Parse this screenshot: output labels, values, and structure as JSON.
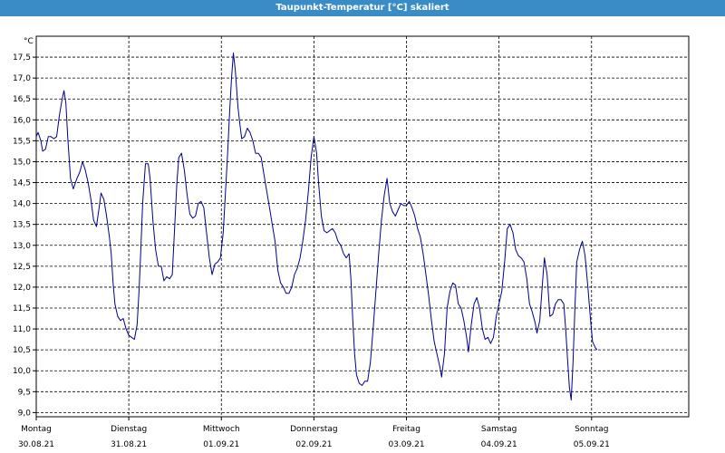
{
  "window": {
    "title": "Taupunkt-Temperatur [°C] skaliert"
  },
  "chart_data": {
    "type": "line",
    "title": "Taupunkt-Temperatur [°C] skaliert",
    "unit_label": "°C",
    "ylim": [
      9.0,
      17.5
    ],
    "ylim_display": [
      8.9,
      18.0
    ],
    "yticks": [
      "9,0",
      "9,5",
      "10,0",
      "10,5",
      "11,0",
      "11,5",
      "12,0",
      "12,5",
      "13,0",
      "13,5",
      "14,0",
      "14,5",
      "15,0",
      "15,5",
      "16,0",
      "16,5",
      "17,0",
      "17,5"
    ],
    "xlim_days": [
      0,
      7.05
    ],
    "xticks": [
      {
        "day": "Montag",
        "date": "30.08.21"
      },
      {
        "day": "Dienstag",
        "date": "31.08.21"
      },
      {
        "day": "Mittwoch",
        "date": "01.09.21"
      },
      {
        "day": "Donnerstag",
        "date": "02.09.21"
      },
      {
        "day": "Freitag",
        "date": "03.09.21"
      },
      {
        "day": "Samstag",
        "date": "04.09.21"
      },
      {
        "day": "Sonntag",
        "date": "05.09.21"
      }
    ],
    "grid": true,
    "line_color": "#00008b",
    "series": [
      {
        "values": [
          [
            0.0,
            15.6
          ],
          [
            0.02,
            15.7
          ],
          [
            0.05,
            15.5
          ],
          [
            0.07,
            15.25
          ],
          [
            0.1,
            15.3
          ],
          [
            0.13,
            15.6
          ],
          [
            0.16,
            15.6
          ],
          [
            0.19,
            15.55
          ],
          [
            0.22,
            15.6
          ],
          [
            0.25,
            16.1
          ],
          [
            0.28,
            16.5
          ],
          [
            0.3,
            16.7
          ],
          [
            0.32,
            16.4
          ],
          [
            0.34,
            15.6
          ],
          [
            0.37,
            14.6
          ],
          [
            0.4,
            14.35
          ],
          [
            0.44,
            14.6
          ],
          [
            0.47,
            14.75
          ],
          [
            0.5,
            15.0
          ],
          [
            0.53,
            14.8
          ],
          [
            0.56,
            14.5
          ],
          [
            0.59,
            14.1
          ],
          [
            0.62,
            13.6
          ],
          [
            0.65,
            13.45
          ],
          [
            0.68,
            13.9
          ],
          [
            0.7,
            14.25
          ],
          [
            0.73,
            14.1
          ],
          [
            0.76,
            13.7
          ],
          [
            0.79,
            13.2
          ],
          [
            0.81,
            12.8
          ],
          [
            0.83,
            12.1
          ],
          [
            0.85,
            11.6
          ],
          [
            0.88,
            11.3
          ],
          [
            0.91,
            11.2
          ],
          [
            0.94,
            11.25
          ],
          [
            0.97,
            11.0
          ],
          [
            1.0,
            10.85
          ],
          [
            1.03,
            10.8
          ],
          [
            1.06,
            10.75
          ],
          [
            1.09,
            11.1
          ],
          [
            1.11,
            11.9
          ],
          [
            1.13,
            12.9
          ],
          [
            1.15,
            14.0
          ],
          [
            1.18,
            14.95
          ],
          [
            1.21,
            14.95
          ],
          [
            1.23,
            14.6
          ],
          [
            1.26,
            13.6
          ],
          [
            1.29,
            12.9
          ],
          [
            1.32,
            12.5
          ],
          [
            1.35,
            12.5
          ],
          [
            1.38,
            12.15
          ],
          [
            1.41,
            12.25
          ],
          [
            1.44,
            12.2
          ],
          [
            1.47,
            12.3
          ],
          [
            1.49,
            13.2
          ],
          [
            1.52,
            14.5
          ],
          [
            1.54,
            15.1
          ],
          [
            1.57,
            15.2
          ],
          [
            1.6,
            14.8
          ],
          [
            1.63,
            14.2
          ],
          [
            1.66,
            13.75
          ],
          [
            1.69,
            13.65
          ],
          [
            1.72,
            13.7
          ],
          [
            1.75,
            14.0
          ],
          [
            1.78,
            14.05
          ],
          [
            1.81,
            13.9
          ],
          [
            1.84,
            13.3
          ],
          [
            1.87,
            12.7
          ],
          [
            1.9,
            12.3
          ],
          [
            1.93,
            12.55
          ],
          [
            1.96,
            12.6
          ],
          [
            1.99,
            12.7
          ],
          [
            2.02,
            13.3
          ],
          [
            2.05,
            14.5
          ],
          [
            2.07,
            15.3
          ],
          [
            2.09,
            16.2
          ],
          [
            2.11,
            17.0
          ],
          [
            2.13,
            17.6
          ],
          [
            2.15,
            17.2
          ],
          [
            2.18,
            16.3
          ],
          [
            2.2,
            15.9
          ],
          [
            2.22,
            15.55
          ],
          [
            2.25,
            15.6
          ],
          [
            2.28,
            15.8
          ],
          [
            2.31,
            15.7
          ],
          [
            2.34,
            15.5
          ],
          [
            2.37,
            15.2
          ],
          [
            2.4,
            15.2
          ],
          [
            2.43,
            15.1
          ],
          [
            2.46,
            14.7
          ],
          [
            2.49,
            14.3
          ],
          [
            2.52,
            13.9
          ],
          [
            2.55,
            13.5
          ],
          [
            2.58,
            13.1
          ],
          [
            2.61,
            12.4
          ],
          [
            2.64,
            12.1
          ],
          [
            2.67,
            12.0
          ],
          [
            2.7,
            11.85
          ],
          [
            2.73,
            11.85
          ],
          [
            2.76,
            12.0
          ],
          [
            2.79,
            12.3
          ],
          [
            2.82,
            12.45
          ],
          [
            2.85,
            12.7
          ],
          [
            2.88,
            13.1
          ],
          [
            2.91,
            13.6
          ],
          [
            2.94,
            14.3
          ],
          [
            2.97,
            15.1
          ],
          [
            3.0,
            15.6
          ],
          [
            3.03,
            15.2
          ],
          [
            3.05,
            14.5
          ],
          [
            3.08,
            13.7
          ],
          [
            3.11,
            13.35
          ],
          [
            3.14,
            13.3
          ],
          [
            3.17,
            13.35
          ],
          [
            3.2,
            13.4
          ],
          [
            3.23,
            13.3
          ],
          [
            3.26,
            13.1
          ],
          [
            3.29,
            13.0
          ],
          [
            3.32,
            12.8
          ],
          [
            3.35,
            12.7
          ],
          [
            3.38,
            12.8
          ],
          [
            3.4,
            12.2
          ],
          [
            3.42,
            11.2
          ],
          [
            3.44,
            10.4
          ],
          [
            3.46,
            9.9
          ],
          [
            3.49,
            9.7
          ],
          [
            3.52,
            9.65
          ],
          [
            3.55,
            9.75
          ],
          [
            3.58,
            9.75
          ],
          [
            3.61,
            10.2
          ],
          [
            3.64,
            11.0
          ],
          [
            3.67,
            11.9
          ],
          [
            3.7,
            12.8
          ],
          [
            3.73,
            13.6
          ],
          [
            3.76,
            14.2
          ],
          [
            3.79,
            14.6
          ],
          [
            3.82,
            14.0
          ],
          [
            3.85,
            13.8
          ],
          [
            3.88,
            13.7
          ],
          [
            3.91,
            13.85
          ],
          [
            3.94,
            14.0
          ],
          [
            3.97,
            13.95
          ],
          [
            4.0,
            13.95
          ],
          [
            4.03,
            14.05
          ],
          [
            4.06,
            13.9
          ],
          [
            4.09,
            13.7
          ],
          [
            4.12,
            13.4
          ],
          [
            4.15,
            13.2
          ],
          [
            4.18,
            12.8
          ],
          [
            4.21,
            12.3
          ],
          [
            4.24,
            11.8
          ],
          [
            4.27,
            11.2
          ],
          [
            4.3,
            10.7
          ],
          [
            4.33,
            10.4
          ],
          [
            4.36,
            10.1
          ],
          [
            4.38,
            9.85
          ],
          [
            4.41,
            10.4
          ],
          [
            4.44,
            11.5
          ],
          [
            4.47,
            11.9
          ],
          [
            4.5,
            12.1
          ],
          [
            4.53,
            12.05
          ],
          [
            4.56,
            11.6
          ],
          [
            4.59,
            11.5
          ],
          [
            4.62,
            11.2
          ],
          [
            4.65,
            10.8
          ],
          [
            4.67,
            10.45
          ],
          [
            4.7,
            11.1
          ],
          [
            4.73,
            11.6
          ],
          [
            4.76,
            11.75
          ],
          [
            4.79,
            11.5
          ],
          [
            4.82,
            11.0
          ],
          [
            4.85,
            10.75
          ],
          [
            4.88,
            10.8
          ],
          [
            4.91,
            10.65
          ],
          [
            4.94,
            10.8
          ],
          [
            4.97,
            11.3
          ],
          [
            5.0,
            11.6
          ],
          [
            5.03,
            11.9
          ],
          [
            5.06,
            12.6
          ],
          [
            5.09,
            13.4
          ],
          [
            5.12,
            13.5
          ],
          [
            5.15,
            13.3
          ],
          [
            5.18,
            12.9
          ],
          [
            5.21,
            12.75
          ],
          [
            5.24,
            12.7
          ],
          [
            5.27,
            12.6
          ],
          [
            5.3,
            12.2
          ],
          [
            5.33,
            11.6
          ],
          [
            5.36,
            11.4
          ],
          [
            5.39,
            11.15
          ],
          [
            5.41,
            10.9
          ],
          [
            5.44,
            11.2
          ],
          [
            5.47,
            12.1
          ],
          [
            5.49,
            12.7
          ],
          [
            5.52,
            12.3
          ],
          [
            5.55,
            11.3
          ],
          [
            5.58,
            11.35
          ],
          [
            5.61,
            11.6
          ],
          [
            5.64,
            11.7
          ],
          [
            5.67,
            11.7
          ],
          [
            5.7,
            11.6
          ],
          [
            5.72,
            11.0
          ],
          [
            5.74,
            10.3
          ],
          [
            5.76,
            9.6
          ],
          [
            5.78,
            9.3
          ],
          [
            5.8,
            10.2
          ],
          [
            5.82,
            11.5
          ],
          [
            5.84,
            12.6
          ],
          [
            5.87,
            12.9
          ],
          [
            5.9,
            13.1
          ],
          [
            5.93,
            12.75
          ],
          [
            5.96,
            12.0
          ],
          [
            5.99,
            11.2
          ],
          [
            6.01,
            10.7
          ],
          [
            6.04,
            10.55
          ],
          [
            6.06,
            10.5
          ]
        ]
      }
    ]
  }
}
